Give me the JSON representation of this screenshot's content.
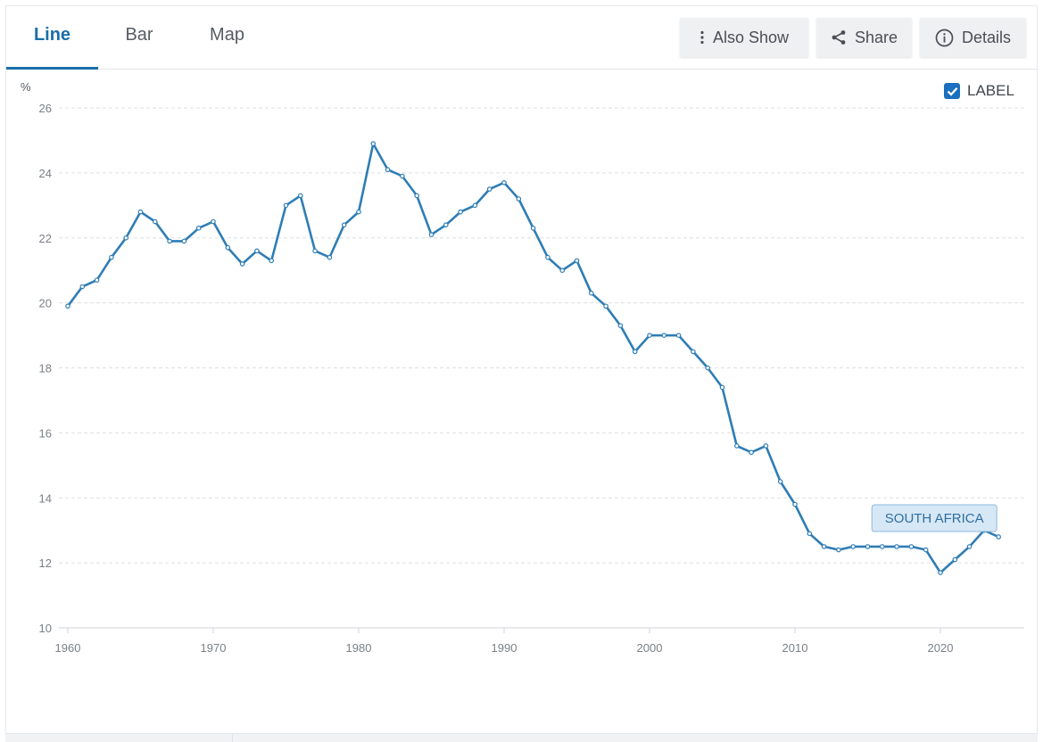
{
  "tabs": [
    {
      "label": "Line",
      "active": true
    },
    {
      "label": "Bar",
      "active": false
    },
    {
      "label": "Map",
      "active": false
    }
  ],
  "toolbar": {
    "also_show": "Also Show",
    "share": "Share",
    "details": "Details"
  },
  "label_toggle": {
    "text": "LABEL",
    "checked": true
  },
  "colors": {
    "accent": "#1a6fa8",
    "line": "#2f7db5",
    "grid": "#dcdfe3"
  },
  "chart_data": {
    "type": "line",
    "ylabel": "%",
    "ylim": [
      10,
      26
    ],
    "yticks": [
      "10",
      "12",
      "14",
      "16",
      "18",
      "20",
      "22",
      "24",
      "26"
    ],
    "xlim": [
      1960,
      2025
    ],
    "xticks": [
      "1960",
      "1970",
      "1980",
      "1990",
      "2000",
      "2010",
      "2020"
    ],
    "grid": true,
    "series": [
      {
        "name": "SOUTH AFRICA",
        "x": [
          1960,
          1961,
          1962,
          1963,
          1964,
          1965,
          1966,
          1967,
          1968,
          1969,
          1970,
          1971,
          1972,
          1973,
          1974,
          1975,
          1976,
          1977,
          1978,
          1979,
          1980,
          1981,
          1982,
          1983,
          1984,
          1985,
          1986,
          1987,
          1988,
          1989,
          1990,
          1991,
          1992,
          1993,
          1994,
          1995,
          1996,
          1997,
          1998,
          1999,
          2000,
          2001,
          2002,
          2003,
          2004,
          2005,
          2006,
          2007,
          2008,
          2009,
          2010,
          2011,
          2012,
          2013,
          2014,
          2015,
          2016,
          2017,
          2018,
          2019,
          2020,
          2021,
          2022,
          2023,
          2024
        ],
        "values": [
          19.9,
          20.5,
          20.7,
          21.4,
          22.0,
          22.8,
          22.5,
          21.9,
          21.9,
          22.3,
          22.5,
          21.7,
          21.2,
          21.6,
          21.3,
          23.0,
          23.3,
          21.6,
          21.4,
          22.4,
          22.8,
          24.9,
          24.1,
          23.9,
          23.3,
          22.1,
          22.4,
          22.8,
          23.0,
          23.5,
          23.7,
          23.2,
          22.3,
          21.4,
          21.0,
          21.3,
          20.3,
          19.9,
          19.3,
          18.5,
          19.0,
          19.0,
          19.0,
          18.5,
          18.0,
          17.4,
          15.6,
          15.4,
          15.6,
          14.5,
          13.8,
          12.9,
          12.5,
          12.4,
          12.5,
          12.5,
          12.5,
          12.5,
          12.5,
          12.4,
          11.7,
          12.1,
          12.5,
          13.0,
          12.8
        ]
      }
    ],
    "annotation": "SOUTH AFRICA"
  }
}
